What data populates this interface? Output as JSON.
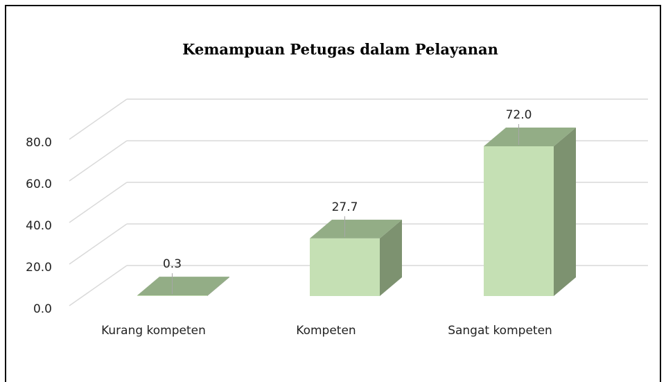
{
  "chart_data": {
    "type": "bar3d",
    "title": "Kemampuan Petugas dalam Pelayanan",
    "categories": [
      "Kurang kompeten",
      "Kompeten",
      "Sangat kompeten"
    ],
    "values": [
      0.3,
      27.7,
      72.0
    ],
    "value_labels": [
      "0.3",
      "27.7",
      "72.0"
    ],
    "color": "#c5e0b4",
    "ylim": [
      0,
      80
    ],
    "yticks": [
      {
        "value": 0,
        "label": "0.0"
      },
      {
        "value": 20,
        "label": "20.0"
      },
      {
        "value": 40,
        "label": "40.0"
      },
      {
        "value": 60,
        "label": "60.0"
      },
      {
        "value": 80,
        "label": "80.0"
      }
    ],
    "grid": true
  }
}
